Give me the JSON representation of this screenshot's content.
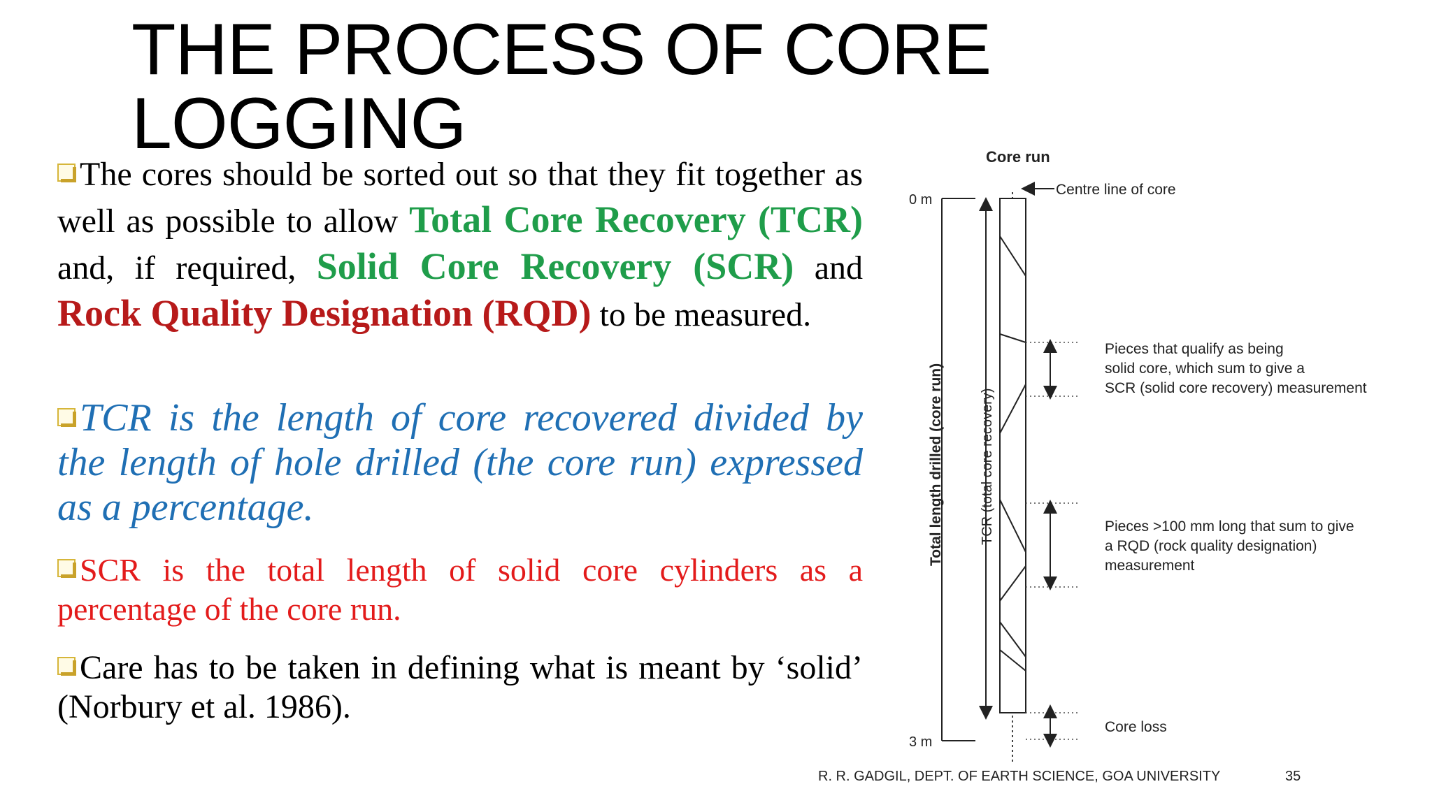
{
  "slide": {
    "title": "THE PROCESS OF CORE LOGGING",
    "bullet1": {
      "t1": "The cores should be sorted out so that they fit together as well as possible to allow ",
      "tcr": "Total Core Recovery (TCR)",
      "t2": " and, if required, ",
      "scr": "Solid Core Recovery (SCR)",
      "t3": " and ",
      "rqd": "Rock Quality Designation (RQD)",
      "t4": " to be measured."
    },
    "bullet2": "TCR is the length of core recovered divided by the length of hole drilled (the core run) expressed as a percentage.",
    "bullet3": "SCR is the total length of solid core cylinders as a percentage of the core run.",
    "bullet4": "Care has to be taken in defining what is meant by ‘solid’ (Norbury et al. 1986).",
    "footer": "R. R. GADGIL, DEPT. OF EARTH SCIENCE, GOA UNIVERSITY",
    "page_number": "35"
  },
  "diagram": {
    "heading": "Core run",
    "depth_top": "0 m",
    "depth_bottom": "3 m",
    "centre_label": "Centre line of core",
    "axis_total": "Total length drilled (core run)",
    "axis_tcr": "TCR (total core recovery)",
    "scr_line1": "Pieces that qualify as being",
    "scr_line2": "solid core, which sum to give a",
    "scr_line3": "SCR (solid core recovery) measurement",
    "rqd_line1": "Pieces >100 mm long that sum to give",
    "rqd_line2": "a RQD (rock quality designation)",
    "rqd_line3": "measurement",
    "core_loss": "Core loss"
  },
  "colors": {
    "title": "#000000",
    "green_term": "#1f9d4a",
    "red_term": "#b71a1a",
    "blue_text": "#1f6fb4",
    "red_text": "#e31b1b",
    "bullet_box": "#d6b63a"
  }
}
